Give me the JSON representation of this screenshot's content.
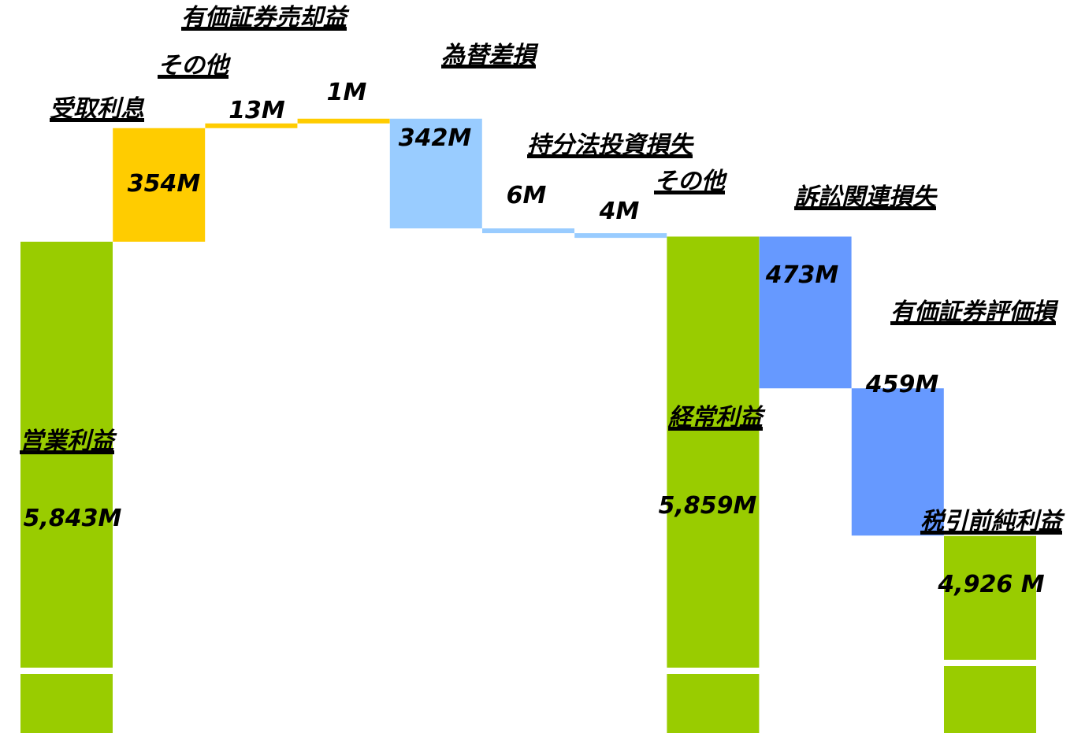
{
  "chart_data": {
    "type": "bar",
    "subtype": "waterfall",
    "unit": "M",
    "categories": [
      "営業利益",
      "受取利息",
      "その他",
      "有価証券売却益",
      "為替差損",
      "持分法投資損失",
      "その他",
      "経常利益",
      "訴訟関連損失",
      "有価証券評価損",
      "税引前純利益"
    ],
    "values": [
      5843,
      354,
      13,
      1,
      -342,
      -6,
      -4,
      5859,
      -473,
      -459,
      4926
    ],
    "kinds": [
      "total",
      "increase",
      "increase",
      "increase",
      "decrease",
      "decrease",
      "decrease",
      "total",
      "decrease",
      "decrease",
      "total"
    ],
    "value_labels": [
      "5,843M",
      "354M",
      "13M",
      "1M",
      "342M",
      "6M",
      "4M",
      "5,859M",
      "473M",
      "459M",
      "4,926 M"
    ],
    "axis_break": true,
    "colors": {
      "total": "#99cc00",
      "increase": "#ffcc00",
      "decrease_light": "#99ccff",
      "decrease_dark": "#6699ff"
    }
  }
}
